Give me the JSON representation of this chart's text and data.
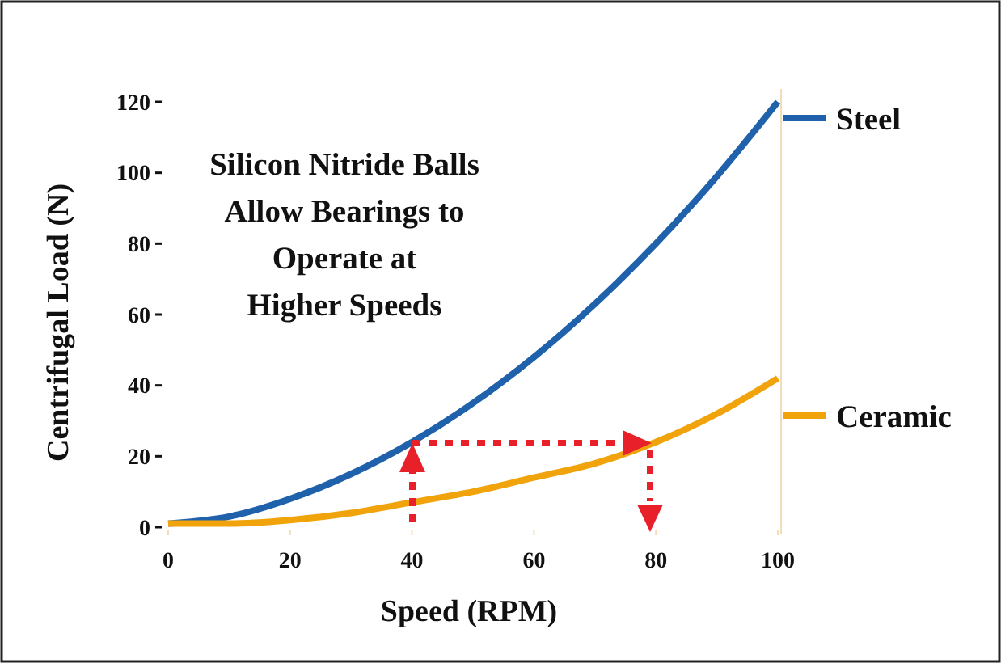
{
  "chart_data": {
    "type": "line",
    "xlabel": "Speed (RPM)",
    "ylabel": "Centrifugal Load (N)",
    "annotations": [
      "Silicon Nitride Balls\nAllow Bearings to\nOperate at\nHigher Speeds"
    ],
    "x": [
      0,
      10,
      20,
      30,
      40,
      50,
      60,
      70,
      80,
      90,
      100
    ],
    "series": [
      {
        "name": "Steel",
        "color": "#1f62ab",
        "values": [
          1,
          3,
          8,
          15,
          24,
          35,
          48,
          63,
          80,
          99,
          120
        ]
      },
      {
        "name": "Ceramic",
        "color": "#f0a30a",
        "values": [
          1,
          1,
          2,
          4,
          7,
          10,
          14,
          18,
          24,
          32,
          42
        ]
      }
    ],
    "xlim": [
      0,
      100
    ],
    "xticks": [
      0,
      20,
      40,
      60,
      80,
      100
    ],
    "ylim": [
      0,
      120
    ],
    "yticks": [
      0,
      20,
      40,
      60,
      80,
      100,
      120
    ],
    "legend": "right",
    "grid": false,
    "marker": "none",
    "line_style": "solid"
  }
}
